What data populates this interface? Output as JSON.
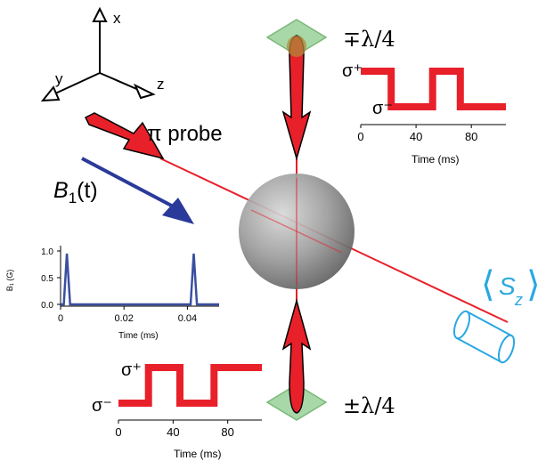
{
  "axes3d": {
    "x": "x",
    "y": "y",
    "z": "z"
  },
  "probe_label": "π probe",
  "field_label": {
    "symbol": "B",
    "sub": "1",
    "arg": "(t)"
  },
  "top_plate_label": "∓λ/4",
  "bottom_plate_label": "±λ/4",
  "detector_label": {
    "S": "S",
    "sub": "z"
  },
  "colors": {
    "beam": "#e8202a",
    "field": "#2a3a9a",
    "plot_line": "#3a4fa0",
    "waveplate": "#a8d8a8",
    "detector": "#2aa8e0",
    "sphere": "#9a9a9a"
  },
  "top_plot": {
    "upper_label": "σ⁺",
    "lower_label": "σ⁻",
    "xlabel": "Time (ms)",
    "ticks": [
      "0",
      "40",
      "80"
    ]
  },
  "bottom_plot": {
    "upper_label": "σ⁺",
    "lower_label": "σ⁻",
    "xlabel": "Time (ms)",
    "ticks": [
      "0",
      "40",
      "80"
    ]
  },
  "chart_data": [
    {
      "type": "line",
      "name": "top polarization sequence",
      "xlabel": "Time (ms)",
      "xlim": [
        0,
        105
      ],
      "x_ticks": [
        0,
        40,
        80
      ],
      "levels": [
        "σ⁻",
        "σ⁺"
      ],
      "points": [
        [
          0,
          1
        ],
        [
          22,
          1
        ],
        [
          22,
          0
        ],
        [
          52,
          0
        ],
        [
          52,
          1
        ],
        [
          72,
          1
        ],
        [
          72,
          0
        ],
        [
          105,
          0
        ]
      ]
    },
    {
      "type": "line",
      "name": "bottom polarization sequence",
      "xlabel": "Time (ms)",
      "xlim": [
        0,
        105
      ],
      "x_ticks": [
        0,
        40,
        80
      ],
      "levels": [
        "σ⁻",
        "σ⁺"
      ],
      "points": [
        [
          0,
          0
        ],
        [
          22,
          0
        ],
        [
          22,
          1
        ],
        [
          45,
          1
        ],
        [
          45,
          0
        ],
        [
          70,
          0
        ],
        [
          70,
          1
        ],
        [
          105,
          1
        ]
      ]
    },
    {
      "type": "line",
      "name": "B1 pulses",
      "xlabel": "Time (ms)",
      "ylabel": "B₁ (G)",
      "xlim": [
        0,
        0.05
      ],
      "ylim": [
        0,
        1
      ],
      "x_ticks": [
        "0",
        "0.02",
        "0.04"
      ],
      "y_ticks": [
        "0.0",
        "0.5",
        "1.0"
      ],
      "points": [
        [
          0,
          0
        ],
        [
          0.001,
          0
        ],
        [
          0.002,
          0.95
        ],
        [
          0.003,
          0
        ],
        [
          0.041,
          0
        ],
        [
          0.042,
          0.95
        ],
        [
          0.043,
          0
        ],
        [
          0.05,
          0
        ]
      ]
    }
  ]
}
